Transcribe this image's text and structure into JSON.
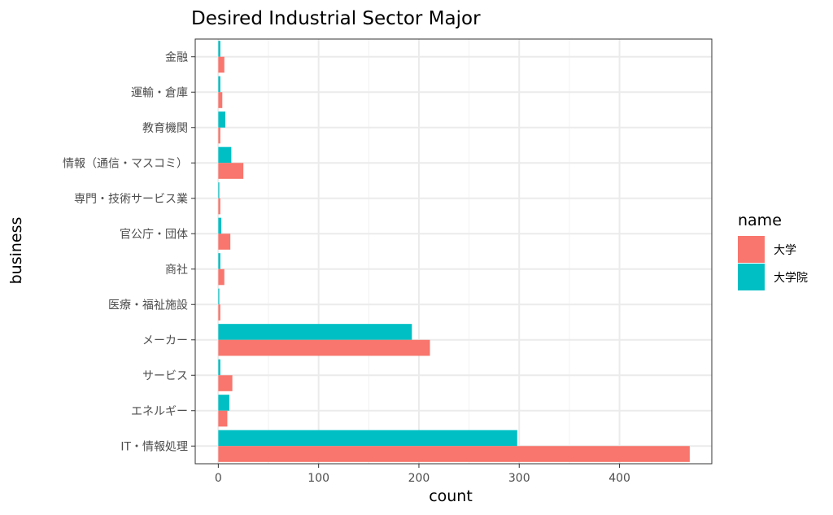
{
  "chart_data": {
    "type": "bar",
    "orientation": "horizontal",
    "title": "Desired Industrial Sector Major",
    "xlabel": "count",
    "ylabel": "business",
    "xlim": [
      -23,
      492
    ],
    "xticks": [
      0,
      100,
      200,
      300,
      400
    ],
    "categories": [
      "金融",
      "運輸・倉庫",
      "教育機関",
      "情報（通信・マスコミ）",
      "専門・技術サービス業",
      "官公庁・団体",
      "商社",
      "医療・福祉施設",
      "メーカー",
      "サービス",
      "エネルギー",
      "IT・情報処理"
    ],
    "series": [
      {
        "name": "大学",
        "color": "#F8766D",
        "values": [
          6,
          4,
          2,
          25,
          2,
          12,
          6,
          2,
          211,
          14,
          9,
          470
        ]
      },
      {
        "name": "大学院",
        "color": "#00BFC4",
        "values": [
          2,
          2,
          7,
          13,
          1,
          3,
          2,
          1,
          193,
          2,
          11,
          298
        ]
      }
    ],
    "legend": {
      "title": "name",
      "position": "right"
    },
    "grid": true
  }
}
